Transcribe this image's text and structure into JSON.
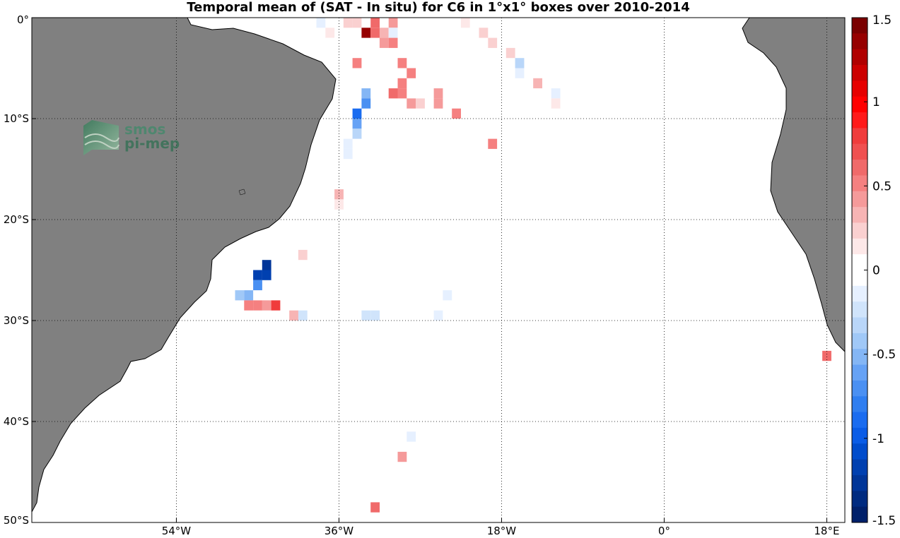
{
  "title": "Temporal mean of (SAT - In situ) for C6 in 1°x1° boxes over 2010-2014",
  "logo": {
    "line1": "smos",
    "line2": "pi-mep",
    "color": "#3f8a6a"
  },
  "colors": {
    "land": "#808080",
    "ocean": "#ffffff",
    "grid": "#000000"
  },
  "map_extent": {
    "lon": [
      -70,
      20
    ],
    "lat": [
      -50,
      0
    ]
  },
  "x_ticks": [
    {
      "value": -54,
      "label": "54°W"
    },
    {
      "value": -36,
      "label": "36°W"
    },
    {
      "value": -18,
      "label": "18°W"
    },
    {
      "value": 0,
      "label": "0°"
    },
    {
      "value": 18,
      "label": "18°E"
    }
  ],
  "y_ticks": [
    {
      "value": 0,
      "label": "0°"
    },
    {
      "value": -10,
      "label": "10°S"
    },
    {
      "value": -20,
      "label": "20°S"
    },
    {
      "value": -30,
      "label": "30°S"
    },
    {
      "value": -40,
      "label": "40°S"
    },
    {
      "value": -50,
      "label": "50°S"
    }
  ],
  "colorbar": {
    "range": [
      -1.5,
      1.5
    ],
    "ticks": [
      {
        "value": 1.5,
        "label": "1.5"
      },
      {
        "value": 1,
        "label": "1"
      },
      {
        "value": 0.5,
        "label": "0.5"
      },
      {
        "value": 0,
        "label": "0"
      },
      {
        "value": -0.5,
        "label": "-0.5"
      },
      {
        "value": -1,
        "label": "-1"
      },
      {
        "value": -1.5,
        "label": "-1.5"
      }
    ],
    "colors_top_to_bottom": [
      "#7a0000",
      "#960000",
      "#b00000",
      "#cc0000",
      "#e60000",
      "#ff0000",
      "#ff1a1a",
      "#f03c3c",
      "#f05050",
      "#f06a6a",
      "#f58080",
      "#f59a9a",
      "#f7b4b4",
      "#fad0d0",
      "#fde8e8",
      "#ffffff",
      "#ffffff",
      "#e6f0ff",
      "#d0e4fb",
      "#b9d6f9",
      "#a0c8f7",
      "#84b6f5",
      "#66a2f5",
      "#4a90f2",
      "#2f7ef0",
      "#1a6cf0",
      "#0a5ce6",
      "#004ccc",
      "#0040b0",
      "#003598",
      "#002b80",
      "#00206a"
    ]
  },
  "chart_data": {
    "type": "heatmap",
    "title": "Temporal mean of (SAT - In situ) for C6 in 1°x1° boxes over 2010-2014",
    "cell_size_deg": 1,
    "x_unit": "longitude (deg)",
    "y_unit": "latitude (deg)",
    "cells": [
      {
        "lon": -38,
        "lat": -0.5,
        "value": -0.1
      },
      {
        "lon": -37,
        "lat": -1.5,
        "value": 0.15
      },
      {
        "lon": -35,
        "lat": -0.5,
        "value": 0.2
      },
      {
        "lon": -34,
        "lat": -0.5,
        "value": 0.25
      },
      {
        "lon": -33,
        "lat": -1.5,
        "value": 1.4
      },
      {
        "lon": -32,
        "lat": -0.5,
        "value": 0.6
      },
      {
        "lon": -32,
        "lat": -1.5,
        "value": 0.65
      },
      {
        "lon": -31,
        "lat": -1.5,
        "value": 0.3
      },
      {
        "lon": -31,
        "lat": -2.5,
        "value": 0.45
      },
      {
        "lon": -30,
        "lat": -0.5,
        "value": 0.4
      },
      {
        "lon": -30,
        "lat": -1.5,
        "value": -0.1
      },
      {
        "lon": -30,
        "lat": -2.5,
        "value": 0.5
      },
      {
        "lon": -22,
        "lat": -0.5,
        "value": 0.15
      },
      {
        "lon": -20,
        "lat": -1.5,
        "value": 0.25
      },
      {
        "lon": -19,
        "lat": -2.5,
        "value": 0.2
      },
      {
        "lon": -17,
        "lat": -3.5,
        "value": 0.2
      },
      {
        "lon": -16,
        "lat": -4.5,
        "value": -0.3
      },
      {
        "lon": -16,
        "lat": -5.5,
        "value": -0.15
      },
      {
        "lon": -14,
        "lat": -6.5,
        "value": 0.35
      },
      {
        "lon": -12,
        "lat": -7.5,
        "value": -0.15
      },
      {
        "lon": -12,
        "lat": -8.5,
        "value": 0.15
      },
      {
        "lon": -34,
        "lat": -4.5,
        "value": 0.55
      },
      {
        "lon": -29,
        "lat": -4.5,
        "value": 0.55
      },
      {
        "lon": -28,
        "lat": -5.5,
        "value": 0.55
      },
      {
        "lon": -29,
        "lat": -6.5,
        "value": 0.5
      },
      {
        "lon": -30,
        "lat": -7.5,
        "value": 0.6
      },
      {
        "lon": -29,
        "lat": -7.5,
        "value": 0.55
      },
      {
        "lon": -28,
        "lat": -8.5,
        "value": 0.4
      },
      {
        "lon": -27,
        "lat": -8.5,
        "value": 0.2
      },
      {
        "lon": -25,
        "lat": -7.5,
        "value": 0.4
      },
      {
        "lon": -25,
        "lat": -8.5,
        "value": 0.4
      },
      {
        "lon": -23,
        "lat": -9.5,
        "value": 0.55
      },
      {
        "lon": -19,
        "lat": -12.5,
        "value": 0.5
      },
      {
        "lon": -33,
        "lat": -7.5,
        "value": -0.5
      },
      {
        "lon": -33,
        "lat": -8.5,
        "value": -0.7
      },
      {
        "lon": -34,
        "lat": -9.5,
        "value": -0.85
      },
      {
        "lon": -34,
        "lat": -10.5,
        "value": -0.6
      },
      {
        "lon": -34,
        "lat": -11.5,
        "value": -0.3
      },
      {
        "lon": -35,
        "lat": -12.5,
        "value": -0.15
      },
      {
        "lon": -35,
        "lat": -13.5,
        "value": -0.15
      },
      {
        "lon": -36,
        "lat": -17.5,
        "value": 0.3
      },
      {
        "lon": -36,
        "lat": -18.5,
        "value": 0.15
      },
      {
        "lon": -40,
        "lat": -23.5,
        "value": 0.2
      },
      {
        "lon": -44,
        "lat": -24.5,
        "value": -1.3
      },
      {
        "lon": -45,
        "lat": -25.5,
        "value": -1.2
      },
      {
        "lon": -44,
        "lat": -25.5,
        "value": -1.2
      },
      {
        "lon": -45,
        "lat": -26.5,
        "value": -0.7
      },
      {
        "lon": -47,
        "lat": -27.5,
        "value": -0.4
      },
      {
        "lon": -46,
        "lat": -27.5,
        "value": -0.55
      },
      {
        "lon": -46,
        "lat": -28.5,
        "value": 0.55
      },
      {
        "lon": -45,
        "lat": -28.5,
        "value": 0.55
      },
      {
        "lon": -44,
        "lat": -28.5,
        "value": 0.45
      },
      {
        "lon": -43,
        "lat": -28.5,
        "value": 0.8
      },
      {
        "lon": -41,
        "lat": -29.5,
        "value": 0.3
      },
      {
        "lon": -40,
        "lat": -29.5,
        "value": -0.25
      },
      {
        "lon": -33,
        "lat": -29.5,
        "value": -0.25
      },
      {
        "lon": -32,
        "lat": -29.5,
        "value": -0.25
      },
      {
        "lon": -25,
        "lat": -29.5,
        "value": -0.15
      },
      {
        "lon": -24,
        "lat": -27.5,
        "value": -0.15
      },
      {
        "lon": 18,
        "lat": -33.5,
        "value": 0.6
      },
      {
        "lon": -28,
        "lat": -41.5,
        "value": -0.15
      },
      {
        "lon": -29,
        "lat": -43.5,
        "value": 0.4
      },
      {
        "lon": -32,
        "lat": -48.5,
        "value": 0.6
      }
    ]
  }
}
